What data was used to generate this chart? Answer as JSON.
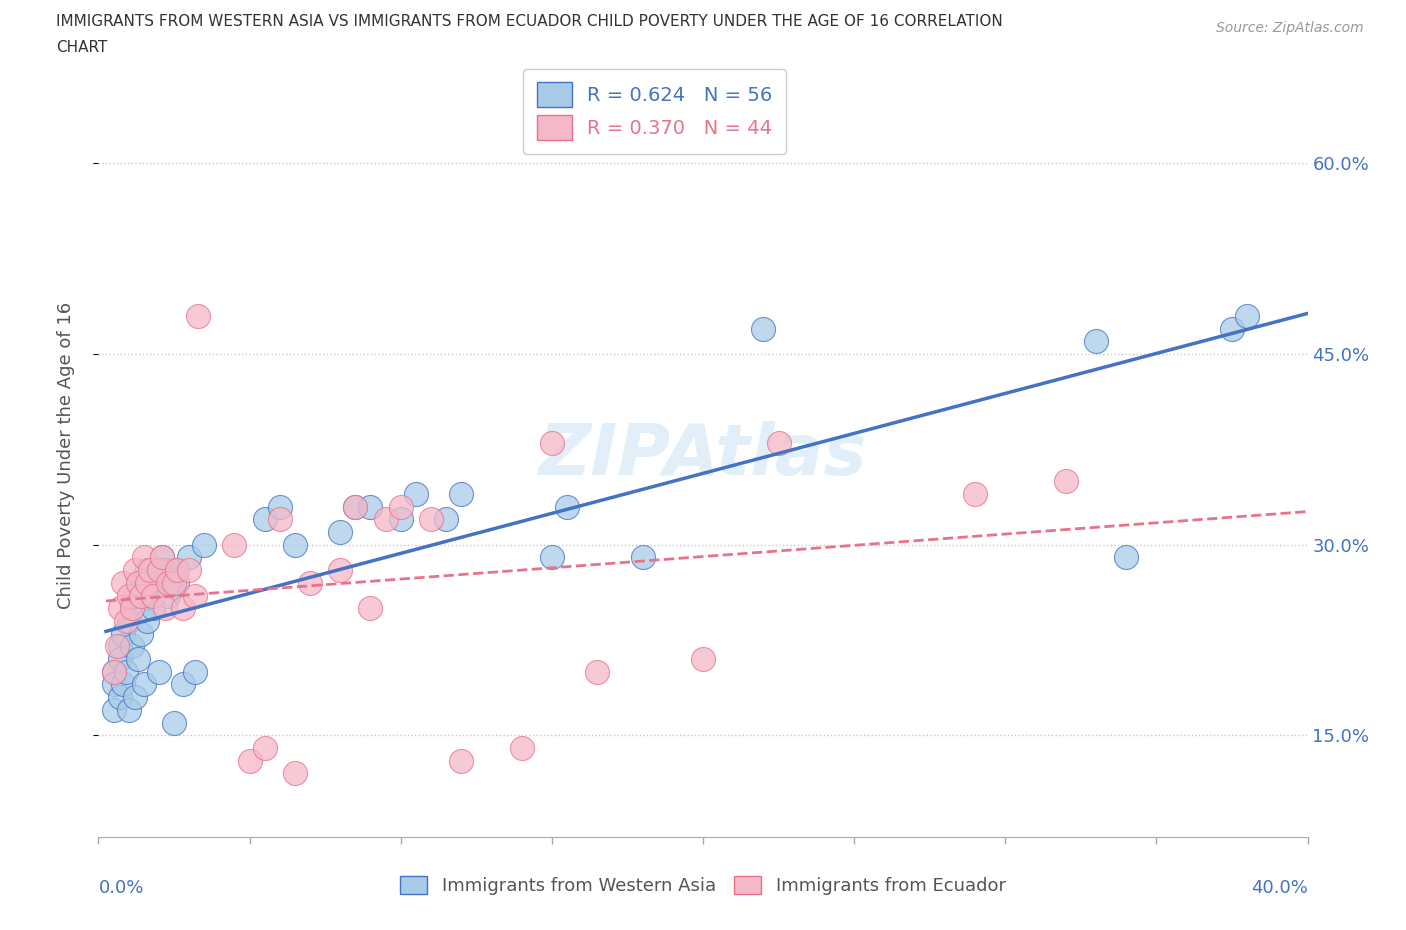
{
  "title_line1": "IMMIGRANTS FROM WESTERN ASIA VS IMMIGRANTS FROM ECUADOR CHILD POVERTY UNDER THE AGE OF 16 CORRELATION",
  "title_line2": "CHART",
  "source": "Source: ZipAtlas.com",
  "ylabel": "Child Poverty Under the Age of 16",
  "ytick_vals": [
    0.15,
    0.3,
    0.45,
    0.6
  ],
  "xlim": [
    0.0,
    0.4
  ],
  "ylim": [
    0.07,
    0.67
  ],
  "color_blue": "#a8cce8",
  "color_pink": "#f5b8c8",
  "color_blue_line": "#4472c4",
  "color_pink_line": "#e8728a",
  "color_blue_dark": "#4472c4",
  "color_pink_dark": "#e8728a",
  "watermark": "ZIPAtlas",
  "wa_x": [
    0.005,
    0.005,
    0.005,
    0.007,
    0.007,
    0.007,
    0.008,
    0.008,
    0.009,
    0.01,
    0.01,
    0.011,
    0.011,
    0.012,
    0.012,
    0.013,
    0.013,
    0.014,
    0.015,
    0.015,
    0.016,
    0.016,
    0.017,
    0.018,
    0.019,
    0.02,
    0.02,
    0.021,
    0.022,
    0.023,
    0.024,
    0.025,
    0.025,
    0.026,
    0.028,
    0.03,
    0.032,
    0.035,
    0.055,
    0.06,
    0.065,
    0.08,
    0.085,
    0.09,
    0.1,
    0.105,
    0.115,
    0.12,
    0.15,
    0.155,
    0.18,
    0.22,
    0.33,
    0.34,
    0.375,
    0.38
  ],
  "wa_y": [
    0.2,
    0.19,
    0.17,
    0.22,
    0.21,
    0.18,
    0.23,
    0.19,
    0.2,
    0.24,
    0.17,
    0.25,
    0.22,
    0.26,
    0.18,
    0.27,
    0.21,
    0.23,
    0.27,
    0.19,
    0.28,
    0.24,
    0.26,
    0.25,
    0.27,
    0.28,
    0.2,
    0.29,
    0.28,
    0.26,
    0.27,
    0.28,
    0.16,
    0.27,
    0.19,
    0.29,
    0.2,
    0.3,
    0.32,
    0.33,
    0.3,
    0.31,
    0.33,
    0.33,
    0.32,
    0.34,
    0.32,
    0.34,
    0.29,
    0.33,
    0.29,
    0.47,
    0.46,
    0.29,
    0.47,
    0.48
  ],
  "ec_x": [
    0.005,
    0.006,
    0.007,
    0.008,
    0.009,
    0.01,
    0.011,
    0.012,
    0.013,
    0.014,
    0.015,
    0.016,
    0.017,
    0.018,
    0.02,
    0.021,
    0.022,
    0.023,
    0.025,
    0.026,
    0.028,
    0.03,
    0.032,
    0.033,
    0.045,
    0.05,
    0.055,
    0.06,
    0.065,
    0.07,
    0.08,
    0.085,
    0.09,
    0.095,
    0.1,
    0.11,
    0.12,
    0.14,
    0.15,
    0.165,
    0.2,
    0.225,
    0.29,
    0.32
  ],
  "ec_y": [
    0.2,
    0.22,
    0.25,
    0.27,
    0.24,
    0.26,
    0.25,
    0.28,
    0.27,
    0.26,
    0.29,
    0.27,
    0.28,
    0.26,
    0.28,
    0.29,
    0.25,
    0.27,
    0.27,
    0.28,
    0.25,
    0.28,
    0.26,
    0.48,
    0.3,
    0.13,
    0.14,
    0.32,
    0.12,
    0.27,
    0.28,
    0.33,
    0.25,
    0.32,
    0.33,
    0.32,
    0.13,
    0.14,
    0.38,
    0.2,
    0.21,
    0.38,
    0.34,
    0.35
  ]
}
